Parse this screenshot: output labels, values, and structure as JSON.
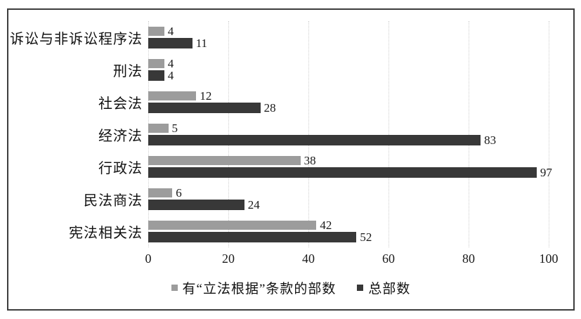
{
  "chart_data": {
    "type": "bar",
    "orientation": "horizontal",
    "title": "",
    "xlabel": "",
    "ylabel": "",
    "categories": [
      "诉讼与非诉讼程序法",
      "刑法",
      "社会法",
      "经济法",
      "行政法",
      "民法商法",
      "宪法相关法"
    ],
    "series": [
      {
        "name": "有“立法根据”条款的部数",
        "color": "#9c9c9c",
        "values": [
          4,
          4,
          12,
          5,
          38,
          6,
          42
        ]
      },
      {
        "name": "总部数",
        "color": "#383838",
        "values": [
          11,
          4,
          28,
          83,
          97,
          24,
          52
        ]
      }
    ],
    "xlim": [
      0,
      100
    ],
    "xticks": [
      0,
      20,
      40,
      60,
      80,
      100
    ],
    "grid": "vertical-dotted",
    "legend_position": "bottom",
    "value_labels": true
  },
  "colors": {
    "frame_border": "#3d3d3d",
    "gridline": "#cfcfcf",
    "text": "#1a1a1a",
    "background": "#ffffff"
  }
}
